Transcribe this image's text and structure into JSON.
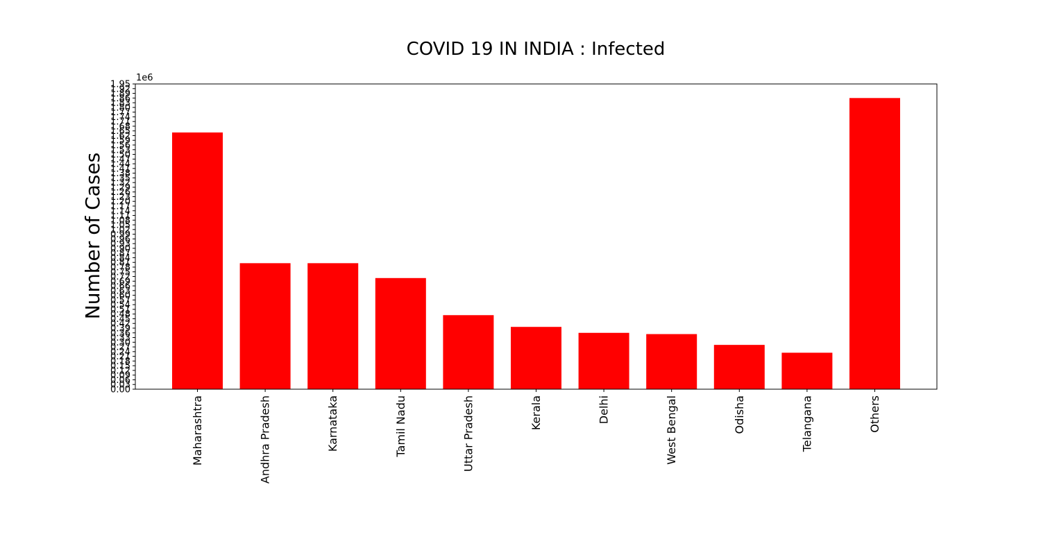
{
  "chart_data": {
    "type": "bar",
    "title": "COVID 19 IN INDIA : Infected",
    "xlabel": "",
    "ylabel": "Number of Cases",
    "y_offset_label": "1e6",
    "ylim": [
      0,
      1.95
    ],
    "grid": false,
    "bar_color": "#ff0000",
    "categories": [
      "Maharashtra",
      "Andhra Pradesh",
      "Karnataka",
      "Tamil Nadu",
      "Uttar Pradesh",
      "Kerala",
      "Delhi",
      "West Bengal",
      "Odisha",
      "Telangana",
      "Others"
    ],
    "values": [
      1.64,
      0.805,
      0.805,
      0.71,
      0.473,
      0.398,
      0.36,
      0.352,
      0.283,
      0.233,
      1.86
    ],
    "yticks": [
      "0.00",
      "0.03",
      "0.06",
      "0.09",
      "0.12",
      "0.15",
      "0.18",
      "0.21",
      "0.24",
      "0.27",
      "0.30",
      "0.33",
      "0.36",
      "0.39",
      "0.42",
      "0.45",
      "0.48",
      "0.51",
      "0.54",
      "0.57",
      "0.60",
      "0.63",
      "0.66",
      "0.69",
      "0.72",
      "0.75",
      "0.78",
      "0.81",
      "0.84",
      "0.87",
      "0.90",
      "0.93",
      "0.96",
      "0.99",
      "1.02",
      "1.05",
      "1.08",
      "1.11",
      "1.14",
      "1.17",
      "1.20",
      "1.23",
      "1.26",
      "1.29",
      "1.32",
      "1.35",
      "1.38",
      "1.41",
      "1.44",
      "1.47",
      "1.50",
      "1.53",
      "1.56",
      "1.59",
      "1.62",
      "1.65",
      "1.68",
      "1.71",
      "1.74",
      "1.77",
      "1.80",
      "1.83",
      "1.86",
      "1.89",
      "1.92",
      "1.95"
    ]
  }
}
